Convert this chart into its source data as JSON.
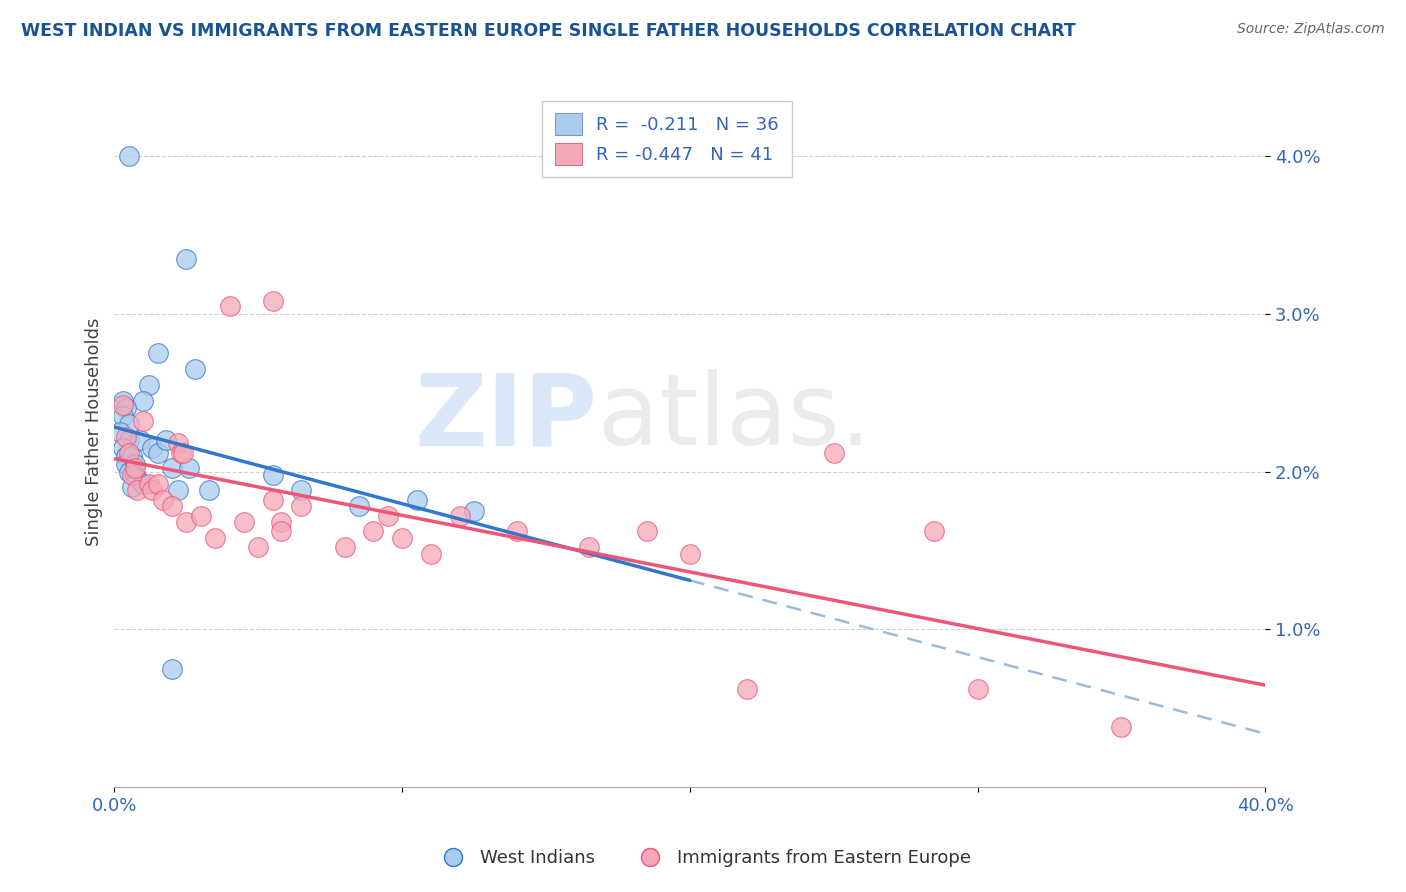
{
  "title": "WEST INDIAN VS IMMIGRANTS FROM EASTERN EUROPE SINGLE FATHER HOUSEHOLDS CORRELATION CHART",
  "source_text": "Source: ZipAtlas.com",
  "ylabel": "Single Father Households",
  "xlim": [
    0.0,
    40.0
  ],
  "ylim": [
    0.0,
    4.5
  ],
  "yticks": [
    1.0,
    2.0,
    3.0,
    4.0
  ],
  "ytick_labels": [
    "1.0%",
    "2.0%",
    "3.0%",
    "4.0%"
  ],
  "xticks": [
    0.0,
    10.0,
    20.0,
    30.0,
    40.0
  ],
  "xtick_labels": [
    "0.0%",
    "",
    "",
    "",
    "40.0%"
  ],
  "blue_scatter": [
    [
      0.5,
      4.0
    ],
    [
      2.5,
      3.35
    ],
    [
      1.5,
      2.75
    ],
    [
      2.8,
      2.65
    ],
    [
      1.2,
      2.55
    ],
    [
      1.0,
      2.45
    ],
    [
      0.3,
      2.45
    ],
    [
      0.4,
      2.4
    ],
    [
      0.3,
      2.35
    ],
    [
      0.5,
      2.3
    ],
    [
      0.2,
      2.25
    ],
    [
      0.5,
      2.2
    ],
    [
      0.3,
      2.15
    ],
    [
      0.4,
      2.1
    ],
    [
      0.4,
      2.05
    ],
    [
      0.6,
      2.1
    ],
    [
      0.5,
      2.0
    ],
    [
      0.7,
      2.05
    ],
    [
      0.7,
      1.98
    ],
    [
      0.9,
      2.2
    ],
    [
      0.8,
      1.95
    ],
    [
      0.6,
      1.9
    ],
    [
      1.0,
      1.92
    ],
    [
      1.3,
      2.15
    ],
    [
      1.5,
      2.12
    ],
    [
      1.8,
      2.2
    ],
    [
      2.0,
      2.02
    ],
    [
      2.2,
      1.88
    ],
    [
      2.6,
      2.02
    ],
    [
      3.3,
      1.88
    ],
    [
      5.5,
      1.98
    ],
    [
      6.5,
      1.88
    ],
    [
      8.5,
      1.78
    ],
    [
      10.5,
      1.82
    ],
    [
      12.5,
      1.75
    ],
    [
      2.0,
      0.75
    ]
  ],
  "pink_scatter": [
    [
      0.3,
      2.42
    ],
    [
      0.4,
      2.22
    ],
    [
      0.5,
      2.12
    ],
    [
      0.6,
      1.98
    ],
    [
      0.7,
      2.02
    ],
    [
      0.8,
      1.88
    ],
    [
      1.0,
      2.32
    ],
    [
      1.2,
      1.92
    ],
    [
      1.3,
      1.88
    ],
    [
      1.5,
      1.92
    ],
    [
      1.7,
      1.82
    ],
    [
      2.0,
      1.78
    ],
    [
      2.2,
      2.18
    ],
    [
      2.3,
      2.12
    ],
    [
      2.4,
      2.12
    ],
    [
      2.5,
      1.68
    ],
    [
      3.0,
      1.72
    ],
    [
      3.5,
      1.58
    ],
    [
      4.0,
      3.05
    ],
    [
      4.5,
      1.68
    ],
    [
      5.0,
      1.52
    ],
    [
      5.5,
      1.82
    ],
    [
      5.8,
      1.68
    ],
    [
      5.8,
      1.62
    ],
    [
      6.5,
      1.78
    ],
    [
      8.0,
      1.52
    ],
    [
      9.0,
      1.62
    ],
    [
      9.5,
      1.72
    ],
    [
      10.0,
      1.58
    ],
    [
      11.0,
      1.48
    ],
    [
      12.0,
      1.72
    ],
    [
      14.0,
      1.62
    ],
    [
      16.5,
      1.52
    ],
    [
      18.5,
      1.62
    ],
    [
      20.0,
      1.48
    ],
    [
      5.5,
      3.08
    ],
    [
      25.0,
      2.12
    ],
    [
      28.5,
      1.62
    ],
    [
      30.0,
      0.62
    ],
    [
      35.0,
      0.38
    ],
    [
      22.0,
      0.62
    ]
  ],
  "blue_line_color": "#3377cc",
  "pink_line_color": "#ee5577",
  "dashed_line_color": "#99bbdd",
  "title_color": "#1a5296",
  "source_color": "#666666",
  "axis_label_color": "#444444",
  "tick_color": "#3366bb",
  "grid_color": "#cccccc",
  "background_color": "#ffffff",
  "legend_blue_color": "#aaccee",
  "legend_pink_color": "#f4a8b8",
  "blue_line_xmax": 20.0,
  "watermark_zip_color": "#b0ccee",
  "watermark_atlas_color": "#c8c8c8"
}
